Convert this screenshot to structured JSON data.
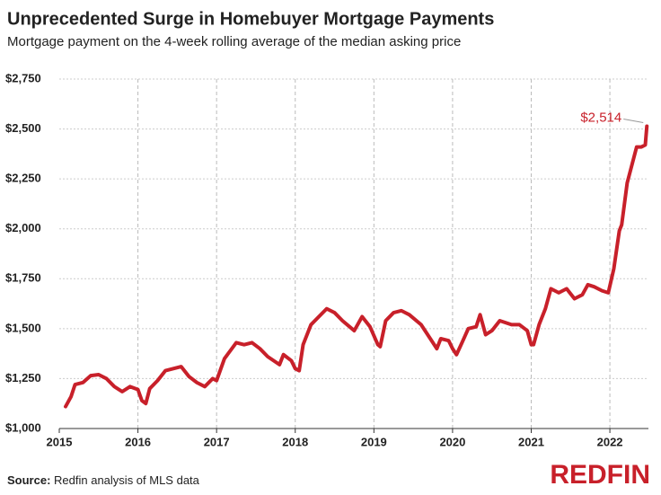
{
  "chart_data": {
    "type": "line",
    "title": "Unprecedented Surge in Homebuyer Mortgage Payments",
    "subtitle": "Mortgage payment on the 4-week rolling average of the median asking price",
    "x": [
      2015.08,
      2015.15,
      2015.2,
      2015.3,
      2015.4,
      2015.5,
      2015.6,
      2015.7,
      2015.8,
      2015.9,
      2016.0,
      2016.05,
      2016.1,
      2016.15,
      2016.25,
      2016.35,
      2016.45,
      2016.55,
      2016.65,
      2016.75,
      2016.85,
      2016.95,
      2017.0,
      2017.1,
      2017.25,
      2017.35,
      2017.45,
      2017.55,
      2017.65,
      2017.8,
      2017.85,
      2017.95,
      2018.0,
      2018.05,
      2018.1,
      2018.2,
      2018.3,
      2018.4,
      2018.5,
      2018.6,
      2018.75,
      2018.85,
      2018.95,
      2019.05,
      2019.08,
      2019.15,
      2019.25,
      2019.35,
      2019.45,
      2019.6,
      2019.7,
      2019.8,
      2019.85,
      2019.95,
      2020.0,
      2020.05,
      2020.12,
      2020.2,
      2020.3,
      2020.35,
      2020.42,
      2020.5,
      2020.6,
      2020.75,
      2020.85,
      2020.95,
      2021.0,
      2021.03,
      2021.1,
      2021.18,
      2021.25,
      2021.35,
      2021.45,
      2021.55,
      2021.65,
      2021.72,
      2021.8,
      2021.9,
      2021.98,
      2022.05,
      2022.12,
      2022.15,
      2022.22,
      2022.28,
      2022.34,
      2022.4,
      2022.45,
      2022.47
    ],
    "values": [
      1110,
      1160,
      1220,
      1230,
      1265,
      1270,
      1250,
      1210,
      1185,
      1210,
      1195,
      1140,
      1125,
      1200,
      1240,
      1290,
      1300,
      1310,
      1260,
      1230,
      1210,
      1250,
      1240,
      1350,
      1430,
      1420,
      1430,
      1400,
      1360,
      1320,
      1370,
      1340,
      1300,
      1290,
      1420,
      1520,
      1560,
      1600,
      1580,
      1540,
      1490,
      1560,
      1510,
      1420,
      1410,
      1540,
      1580,
      1590,
      1570,
      1520,
      1460,
      1400,
      1450,
      1440,
      1400,
      1370,
      1430,
      1500,
      1510,
      1570,
      1470,
      1490,
      1540,
      1520,
      1520,
      1490,
      1420,
      1420,
      1520,
      1600,
      1700,
      1680,
      1700,
      1650,
      1670,
      1720,
      1710,
      1690,
      1680,
      1800,
      1990,
      2020,
      2230,
      2320,
      2410,
      2410,
      2420,
      2514
    ],
    "value_labels": [
      null,
      null,
      null,
      null,
      null,
      null,
      null,
      null,
      null,
      null,
      null,
      null,
      null,
      null,
      null,
      null,
      null,
      null,
      null,
      null,
      null,
      null,
      null,
      null,
      null,
      null,
      null,
      null,
      null,
      null,
      null,
      null,
      null,
      null,
      null,
      null,
      null,
      null,
      null,
      null,
      null,
      null,
      null,
      null,
      null,
      null,
      null,
      null,
      null,
      null,
      null,
      null,
      null,
      null,
      null,
      null,
      null,
      null,
      null,
      null,
      null,
      null,
      null,
      null,
      null,
      null,
      null,
      null,
      null,
      null,
      null,
      null,
      null,
      null,
      null,
      null,
      null,
      null,
      null,
      null,
      null,
      null,
      null,
      null,
      null,
      null,
      null,
      "$2,514"
    ],
    "color": "#c8202a",
    "xlim": [
      2015,
      2022.49
    ],
    "xticks": [
      2015,
      2016,
      2017,
      2018,
      2019,
      2020,
      2021,
      2022
    ],
    "ylim": [
      1000,
      2750
    ],
    "yticks": [
      {
        "value": 1000,
        "label": "$1,000"
      },
      {
        "value": 1250,
        "label": "$1,250"
      },
      {
        "value": 1500,
        "label": "$1,500"
      },
      {
        "value": 1750,
        "label": "$1,750"
      },
      {
        "value": 2000,
        "label": "$2,000"
      },
      {
        "value": 2250,
        "label": "$2,250"
      },
      {
        "value": 2500,
        "label": "$2,500"
      },
      {
        "value": 2750,
        "label": "$2,750"
      }
    ],
    "grid": true,
    "source": {
      "label": "Source:",
      "text": "Redfin analysis of MLS data"
    },
    "logo": "REDFIN"
  }
}
